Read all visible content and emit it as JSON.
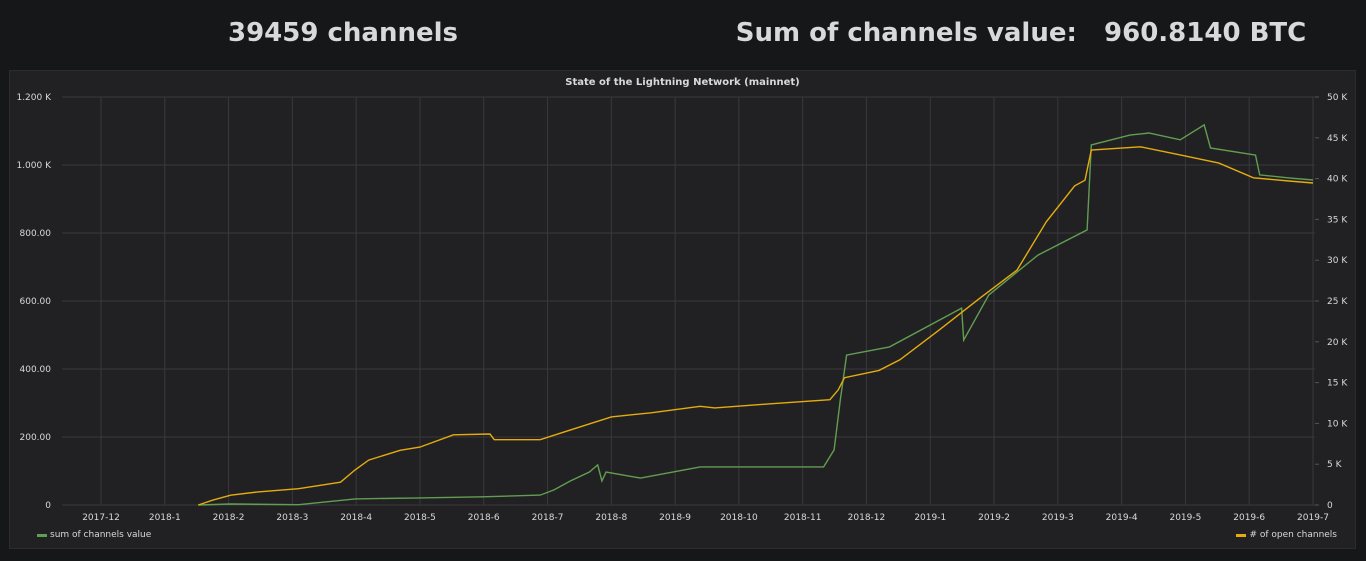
{
  "header": {
    "channels_stat": "39459 channels",
    "sum_stat": "Sum of channels value:   960.8140 BTC"
  },
  "colors": {
    "green": "#629e51",
    "orange": "#e5ac0e",
    "grid": "#39393c",
    "text": "#d8d9da"
  },
  "chart_data": {
    "type": "line",
    "title": "State of the Lightning Network (mainnet)",
    "x_ticks": [
      "2017-12",
      "2018-1",
      "2018-2",
      "2018-3",
      "2018-4",
      "2018-5",
      "2018-6",
      "2018-7",
      "2018-8",
      "2018-9",
      "2018-10",
      "2018-11",
      "2018-12",
      "2019-1",
      "2019-2",
      "2019-3",
      "2019-4",
      "2019-5",
      "2019-6",
      "2019-7"
    ],
    "y_left_ticks": [
      "0",
      "200.00",
      "400.00",
      "600.00",
      "800.00",
      "1.000 K",
      "1.200 K"
    ],
    "y_left_range": [
      0,
      1200
    ],
    "y_right_ticks": [
      "0",
      "5 K",
      "10 K",
      "15 K",
      "20 K",
      "25 K",
      "30 K",
      "35 K",
      "40 K",
      "45 K",
      "50 K"
    ],
    "y_right_range": [
      0,
      50000
    ],
    "grid": true,
    "legend": [
      {
        "name": "sum of channels value",
        "position": "bottom-left",
        "axis": "left"
      },
      {
        "name": "# of open channels",
        "position": "bottom-right",
        "axis": "right"
      }
    ],
    "series": [
      {
        "name": "sum of channels value",
        "axis": "left",
        "color": "#629e51",
        "points": [
          [
            "2018-01-17",
            0
          ],
          [
            "2018-02-02",
            3
          ],
          [
            "2018-03-04",
            1
          ],
          [
            "2018-03-31",
            18
          ],
          [
            "2018-05-01",
            21
          ],
          [
            "2018-05-31",
            24
          ],
          [
            "2018-06-28",
            29
          ],
          [
            "2018-07-04",
            44
          ],
          [
            "2018-07-12",
            71
          ],
          [
            "2018-07-21",
            97
          ],
          [
            "2018-07-25",
            118
          ],
          [
            "2018-07-27",
            71
          ],
          [
            "2018-07-29",
            97
          ],
          [
            "2018-08-15",
            79
          ],
          [
            "2018-09-13",
            112
          ],
          [
            "2018-10-15",
            112
          ],
          [
            "2018-11-11",
            112
          ],
          [
            "2018-11-16",
            162
          ],
          [
            "2018-11-19",
            309
          ],
          [
            "2018-11-22",
            441
          ],
          [
            "2018-12-12",
            465
          ],
          [
            "2019-01-10",
            559
          ],
          [
            "2019-01-16",
            579
          ],
          [
            "2019-01-17",
            485
          ],
          [
            "2019-01-29",
            618
          ],
          [
            "2019-02-22",
            735
          ],
          [
            "2019-03-15",
            809
          ],
          [
            "2019-03-17",
            1059
          ],
          [
            "2019-04-05",
            1088
          ],
          [
            "2019-04-14",
            1094
          ],
          [
            "2019-04-29",
            1074
          ],
          [
            "2019-05-10",
            1118
          ],
          [
            "2019-05-13",
            1050
          ],
          [
            "2019-06-04",
            1029
          ],
          [
            "2019-06-06",
            971
          ],
          [
            "2019-06-20",
            962
          ],
          [
            "2019-07-01",
            956
          ]
        ]
      },
      {
        "name": "# of open channels",
        "axis": "right",
        "color": "#e5ac0e",
        "points": [
          [
            "2018-01-17",
            0
          ],
          [
            "2018-01-24",
            600
          ],
          [
            "2018-02-02",
            1200
          ],
          [
            "2018-02-15",
            1600
          ],
          [
            "2018-03-04",
            2000
          ],
          [
            "2018-03-24",
            2800
          ],
          [
            "2018-03-31",
            4300
          ],
          [
            "2018-04-07",
            5500
          ],
          [
            "2018-04-22",
            6700
          ],
          [
            "2018-05-01",
            7100
          ],
          [
            "2018-05-17",
            8600
          ],
          [
            "2018-06-04",
            8700
          ],
          [
            "2018-06-06",
            8000
          ],
          [
            "2018-06-28",
            8000
          ],
          [
            "2018-07-12",
            9200
          ],
          [
            "2018-08-01",
            10800
          ],
          [
            "2018-08-20",
            11300
          ],
          [
            "2018-09-13",
            12100
          ],
          [
            "2018-09-20",
            11900
          ],
          [
            "2018-10-16",
            12400
          ],
          [
            "2018-11-14",
            12900
          ],
          [
            "2018-11-18",
            14100
          ],
          [
            "2018-11-21",
            15600
          ],
          [
            "2018-12-07",
            16500
          ],
          [
            "2018-12-17",
            17800
          ],
          [
            "2019-01-05",
            21400
          ],
          [
            "2019-01-25",
            25400
          ],
          [
            "2019-02-12",
            28800
          ],
          [
            "2019-02-26",
            34700
          ],
          [
            "2019-03-09",
            39100
          ],
          [
            "2019-03-14",
            39800
          ],
          [
            "2019-03-17",
            43500
          ],
          [
            "2019-04-10",
            43900
          ],
          [
            "2019-04-29",
            42900
          ],
          [
            "2019-05-17",
            41900
          ],
          [
            "2019-06-03",
            40100
          ],
          [
            "2019-06-20",
            39700
          ],
          [
            "2019-07-01",
            39459
          ]
        ]
      }
    ]
  }
}
